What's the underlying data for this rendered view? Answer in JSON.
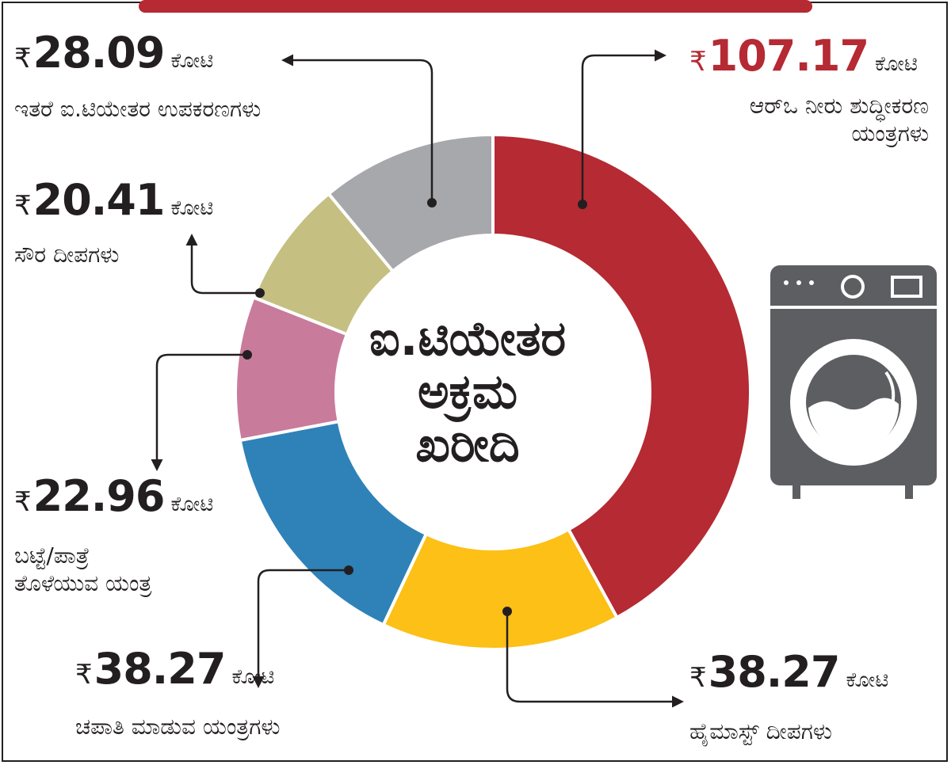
{
  "currency_symbol": "₹",
  "unit": "ಕೋಟಿ",
  "center_title": "ಐ.ಟಿಯೇತರ\nಅಕ್ರಮ\nಖರೀದಿ",
  "colors": {
    "ro": "#b52a33",
    "highmast": "#fcc016",
    "chapati": "#2e82b8",
    "washer": "#c97b9c",
    "solar": "#c5c081",
    "other": "#a7a8ab",
    "accent_bar": "#b52a33",
    "icon": "#5d5e62"
  },
  "icon": "washing-machine-icon",
  "chart_data": {
    "type": "donut",
    "unit": "ಕೋಟಿ",
    "currency": "₹",
    "slices": [
      {
        "key": "ro",
        "label": "ಆರ್‌ಒ ನೀರು ಶುದ್ಧೀಕರಣ\nಯಂತ್ರಗಳು",
        "amount": "107.17",
        "value": 107.17
      },
      {
        "key": "highmast",
        "label": "ಹೈಮಾಸ್ಟ್ ದೀಪಗಳು",
        "amount": "38.27",
        "value": 38.27
      },
      {
        "key": "chapati",
        "label": "ಚಪಾತಿ ಮಾಡುವ ಯಂತ್ರಗಳು",
        "amount": "38.27",
        "value": 38.27
      },
      {
        "key": "washer",
        "label": "ಬಟ್ಟೆ/ಪಾತ್ರೆ\nತೊಳೆಯುವ ಯಂತ್ರ",
        "amount": "22.96",
        "value": 22.96
      },
      {
        "key": "solar",
        "label": "ಸೌರ ದೀಪಗಳು",
        "amount": "20.41",
        "value": 20.41
      },
      {
        "key": "other",
        "label": "ಇತರೆ ಐ.ಟಿಯೇತರ ಉಪಕರಣಗಳು",
        "amount": "28.09",
        "value": 28.09
      }
    ]
  }
}
